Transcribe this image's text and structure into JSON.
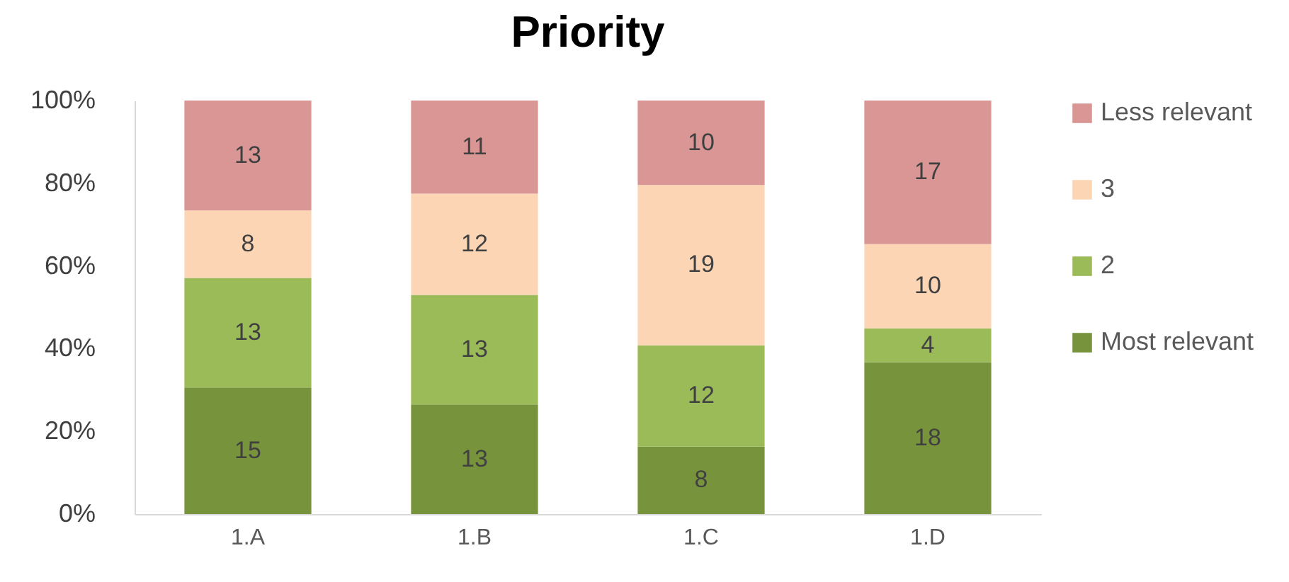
{
  "chart_data": {
    "type": "bar",
    "title": "Priority",
    "stacked": true,
    "legend": "right",
    "grid": false,
    "categories": [
      "1.A",
      "1.B",
      "1.C",
      "1.D"
    ],
    "series": [
      {
        "name": "Most relevant",
        "color": "#77933c",
        "values": [
          30.6,
          26.5,
          16.3,
          36.7
        ]
      },
      {
        "name": "2",
        "color": "#9bbb59",
        "values": [
          26.5,
          26.5,
          24.5,
          8.2
        ]
      },
      {
        "name": "3",
        "color": "#fcd5b5",
        "values": [
          16.3,
          24.5,
          38.8,
          20.4
        ]
      },
      {
        "name": "Less relevant",
        "color": "#d99694",
        "values": [
          26.6,
          22.5,
          20.4,
          34.7
        ]
      }
    ],
    "ylim": [
      0,
      100
    ],
    "yticks": [
      {
        "value": 0,
        "label": "0%"
      },
      {
        "value": 20,
        "label": "20%"
      },
      {
        "value": 40,
        "label": "40%"
      },
      {
        "value": 60,
        "label": "60%"
      },
      {
        "value": 80,
        "label": "80%"
      },
      {
        "value": 100,
        "label": "100%"
      }
    ],
    "annotations": [
      "15",
      "13",
      "8",
      "13",
      "13",
      "13",
      "12",
      "11",
      "8",
      "12",
      "19",
      "10",
      "18",
      "4",
      "10",
      "17"
    ]
  }
}
